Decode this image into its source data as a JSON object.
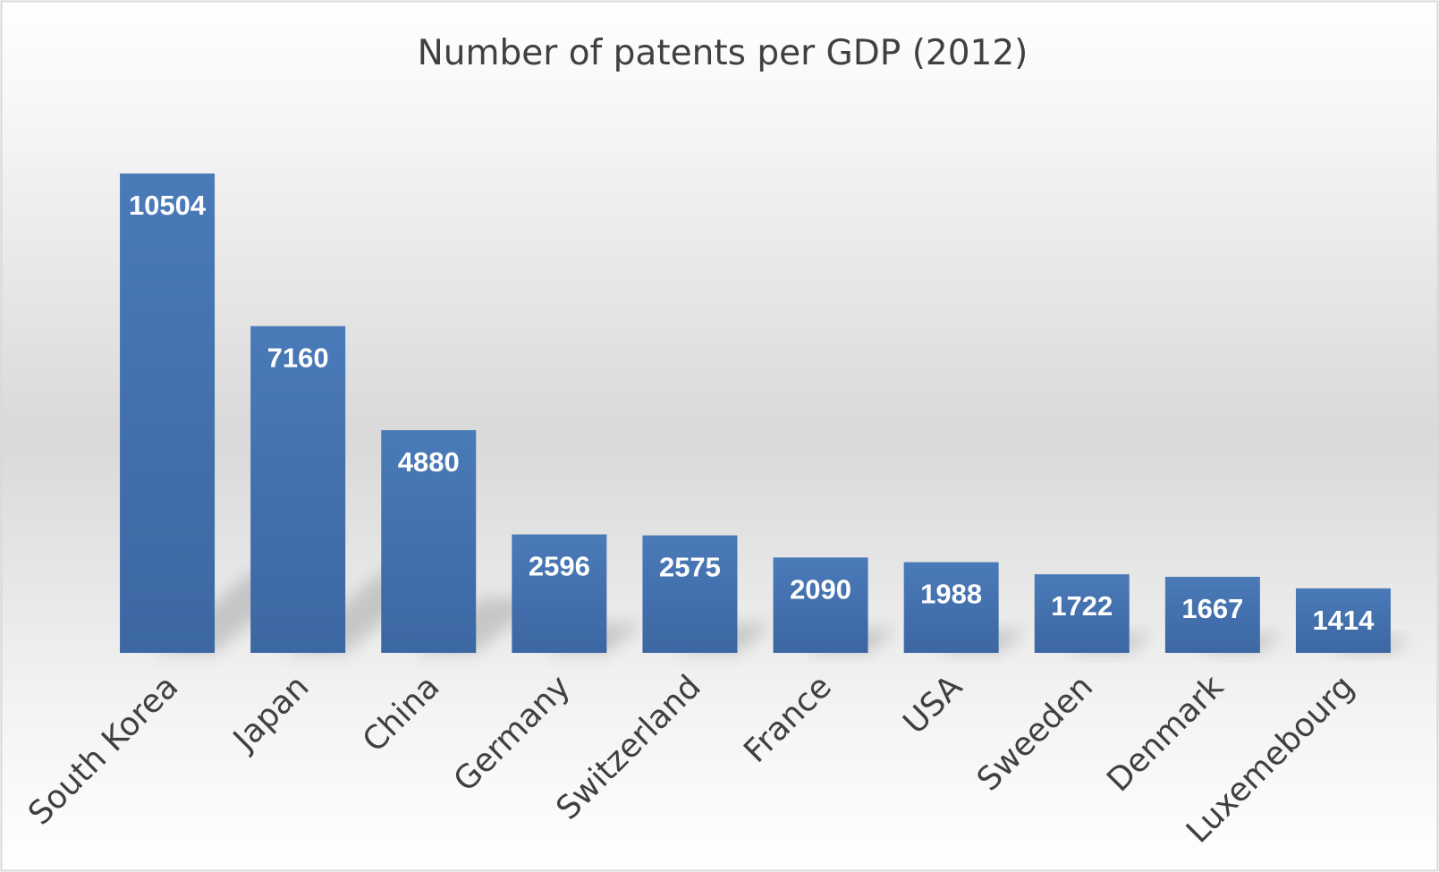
{
  "chart_data": {
    "type": "bar",
    "title": "Number of patents per GDP (2012)",
    "categories": [
      "South Korea",
      "Japan",
      "China",
      "Germany",
      "Switzerland",
      "France",
      "USA",
      "Sweeden",
      "Denmark",
      "Luxemebourg"
    ],
    "values": [
      10504,
      7160,
      4880,
      2596,
      2575,
      2090,
      1988,
      1722,
      1667,
      1414
    ],
    "xlabel": "",
    "ylabel": "",
    "ylim": [
      0,
      10504
    ],
    "grid": false,
    "legend": "none",
    "data_labels": true,
    "bar_color": "#4a7ab8",
    "bar_color_dark": "#3c67a3",
    "label_color": "#ffffff",
    "text_color": "#404040",
    "frame_color": "#d9d9d9"
  }
}
